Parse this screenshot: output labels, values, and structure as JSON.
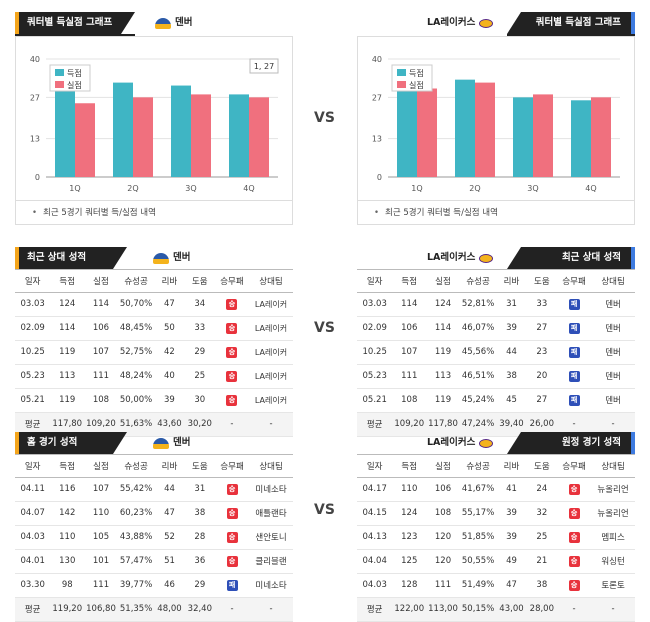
{
  "colors": {
    "score": "#3fb5c4",
    "allowed": "#f0707e"
  },
  "vs": "VS",
  "top_left": {
    "tab": "쿼터별 득실점 그래프",
    "team": "덴버",
    "team_icon": "nuggets-logo-icon",
    "note": "최근 5경기 쿼터별 득/실점 내역",
    "label": "1, 27",
    "legend": [
      "득점",
      "실점"
    ]
  },
  "top_right": {
    "tab": "쿼터별 득실점 그래프",
    "team": "LA레이커스",
    "team_icon": "lakers-logo-icon",
    "note": "최근 5경기 쿼터별 득/실점 내역",
    "legend": [
      "득점",
      "실점"
    ]
  },
  "chart_data": [
    {
      "type": "bar",
      "title": "",
      "categories": [
        "1Q",
        "2Q",
        "3Q",
        "4Q"
      ],
      "ylim": [
        0,
        40
      ],
      "yticks": [
        0,
        13,
        27,
        40
      ],
      "series": [
        {
          "name": "득점",
          "values": [
            30,
            32,
            31,
            28
          ]
        },
        {
          "name": "실점",
          "values": [
            25,
            27,
            28,
            27
          ]
        }
      ]
    },
    {
      "type": "bar",
      "title": "",
      "categories": [
        "1Q",
        "2Q",
        "3Q",
        "4Q"
      ],
      "ylim": [
        0,
        40
      ],
      "yticks": [
        0,
        13,
        27,
        40
      ],
      "series": [
        {
          "name": "득점",
          "values": [
            29,
            33,
            27,
            26
          ]
        },
        {
          "name": "실점",
          "values": [
            30,
            32,
            28,
            27
          ]
        }
      ]
    }
  ],
  "headers": [
    "일자",
    "득점",
    "실점",
    "슈성공",
    "리바",
    "도움",
    "승무패",
    "상대팀"
  ],
  "mid_left": {
    "tab": "최근 상대 성적",
    "team": "덴버",
    "rows": [
      [
        "03.03",
        "124",
        "114",
        "50,70%",
        "47",
        "34",
        "승",
        "LA레이커"
      ],
      [
        "02.09",
        "114",
        "106",
        "48,45%",
        "50",
        "33",
        "승",
        "LA레이커"
      ],
      [
        "10.25",
        "119",
        "107",
        "52,75%",
        "42",
        "29",
        "승",
        "LA레이커"
      ],
      [
        "05.23",
        "113",
        "111",
        "48,24%",
        "40",
        "25",
        "승",
        "LA레이커"
      ],
      [
        "05.21",
        "119",
        "108",
        "50,00%",
        "39",
        "30",
        "승",
        "LA레이커"
      ]
    ],
    "avg": [
      "평균",
      "117,80",
      "109,20",
      "51,63%",
      "43,60",
      "30,20",
      "-",
      "-"
    ]
  },
  "mid_right": {
    "tab": "최근 상대 성적",
    "team": "LA레이커스",
    "rows": [
      [
        "03.03",
        "114",
        "124",
        "52,81%",
        "31",
        "33",
        "패",
        "덴버"
      ],
      [
        "02.09",
        "106",
        "114",
        "46,07%",
        "39",
        "27",
        "패",
        "덴버"
      ],
      [
        "10.25",
        "107",
        "119",
        "45,56%",
        "44",
        "23",
        "패",
        "덴버"
      ],
      [
        "05.23",
        "111",
        "113",
        "46,51%",
        "38",
        "20",
        "패",
        "덴버"
      ],
      [
        "05.21",
        "108",
        "119",
        "45,24%",
        "45",
        "27",
        "패",
        "덴버"
      ]
    ],
    "avg": [
      "평균",
      "109,20",
      "117,80",
      "47,24%",
      "39,40",
      "26,00",
      "-",
      "-"
    ]
  },
  "bot_left": {
    "tab": "홈 경기 성적",
    "team": "덴버",
    "rows": [
      [
        "04.11",
        "116",
        "107",
        "55,42%",
        "44",
        "31",
        "승",
        "미네소타"
      ],
      [
        "04.07",
        "142",
        "110",
        "60,23%",
        "47",
        "38",
        "승",
        "애틀랜타"
      ],
      [
        "04.03",
        "110",
        "105",
        "43,88%",
        "52",
        "28",
        "승",
        "샌안토니"
      ],
      [
        "04.01",
        "130",
        "101",
        "57,47%",
        "51",
        "36",
        "승",
        "클리블랜"
      ],
      [
        "03.30",
        "98",
        "111",
        "39,77%",
        "46",
        "29",
        "패",
        "미네소타"
      ]
    ],
    "avg": [
      "평균",
      "119,20",
      "106,80",
      "51,35%",
      "48,00",
      "32,40",
      "-",
      "-"
    ]
  },
  "bot_right": {
    "tab": "원정 경기 성적",
    "team": "LA레이커스",
    "rows": [
      [
        "04.17",
        "110",
        "106",
        "41,67%",
        "41",
        "24",
        "승",
        "뉴올리언"
      ],
      [
        "04.15",
        "124",
        "108",
        "55,17%",
        "39",
        "32",
        "승",
        "뉴올리언"
      ],
      [
        "04.13",
        "123",
        "120",
        "51,85%",
        "39",
        "25",
        "승",
        "멤피스"
      ],
      [
        "04.04",
        "125",
        "120",
        "50,55%",
        "49",
        "21",
        "승",
        "워싱턴"
      ],
      [
        "04.03",
        "128",
        "111",
        "51,49%",
        "47",
        "38",
        "승",
        "토론토"
      ]
    ],
    "avg": [
      "평균",
      "122,00",
      "113,00",
      "50,15%",
      "43,00",
      "28,00",
      "-",
      "-"
    ]
  }
}
